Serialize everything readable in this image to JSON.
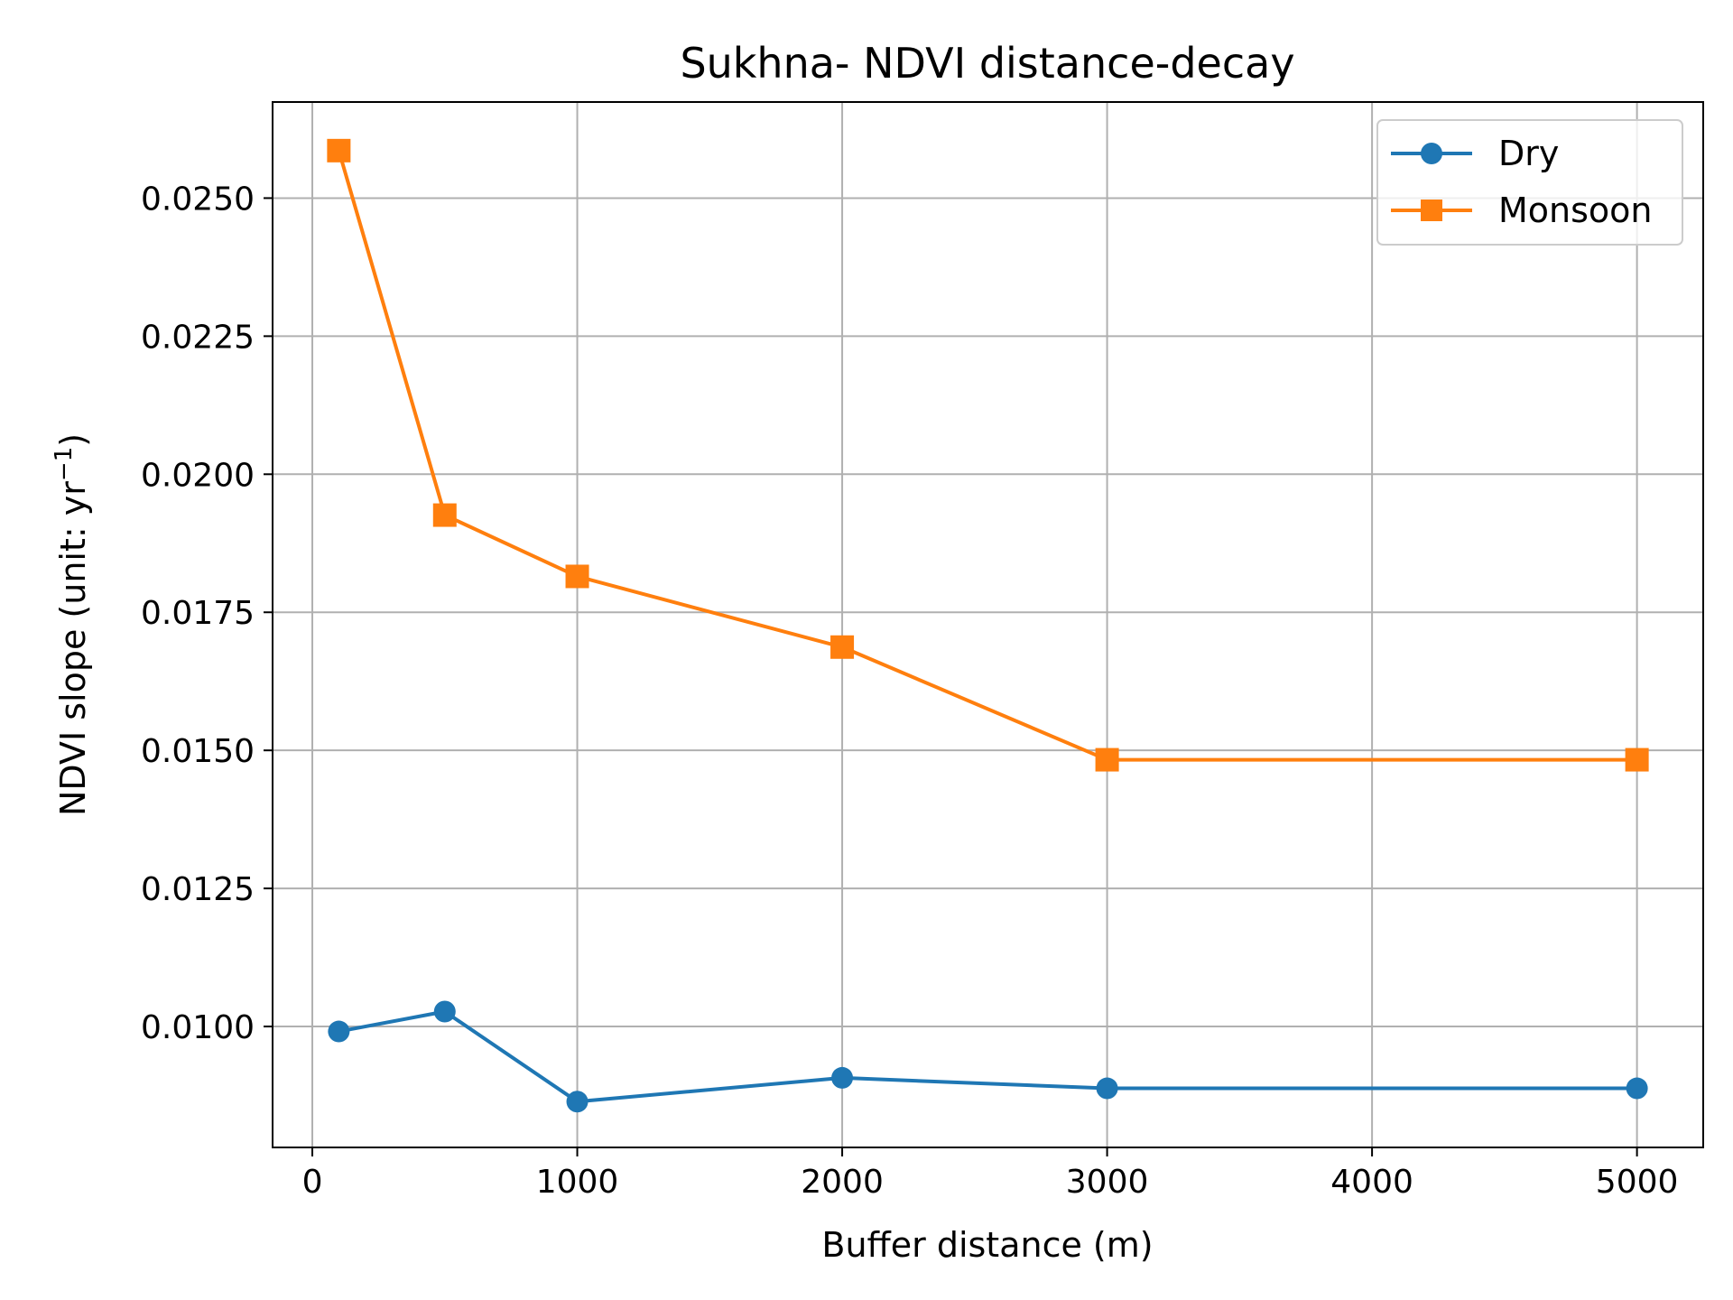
{
  "chart_data": {
    "type": "line",
    "title": "Sukhna- NDVI distance-decay",
    "xlabel": "Buffer distance (m)",
    "ylabel_main": "NDVI slope (unit: yr",
    "ylabel_sup": "−1",
    "ylabel_close": ")",
    "x": [
      100,
      500,
      1000,
      2000,
      3000,
      5000
    ],
    "series": [
      {
        "name": "Dry",
        "color": "#1f77b4",
        "marker": "circle",
        "values": [
          0.00991,
          0.01027,
          0.00864,
          0.00907,
          0.00888,
          0.00888
        ]
      },
      {
        "name": "Monsoon",
        "color": "#ff7f0e",
        "marker": "square",
        "values": [
          0.02586,
          0.01926,
          0.01815,
          0.01687,
          0.01483,
          0.01483
        ]
      }
    ],
    "xlim": [
      -150,
      5250
    ],
    "ylim": [
      0.00781,
      0.02674
    ],
    "xticks": [
      0,
      1000,
      2000,
      3000,
      4000,
      5000
    ],
    "xtick_labels": [
      "0",
      "1000",
      "2000",
      "3000",
      "4000",
      "5000"
    ],
    "yticks": [
      0.01,
      0.0125,
      0.015,
      0.0175,
      0.02,
      0.0225,
      0.025
    ],
    "ytick_labels": [
      "0.0100",
      "0.0125",
      "0.0150",
      "0.0175",
      "0.0200",
      "0.0225",
      "0.0250"
    ],
    "grid": true,
    "legend_position": "top-right"
  }
}
